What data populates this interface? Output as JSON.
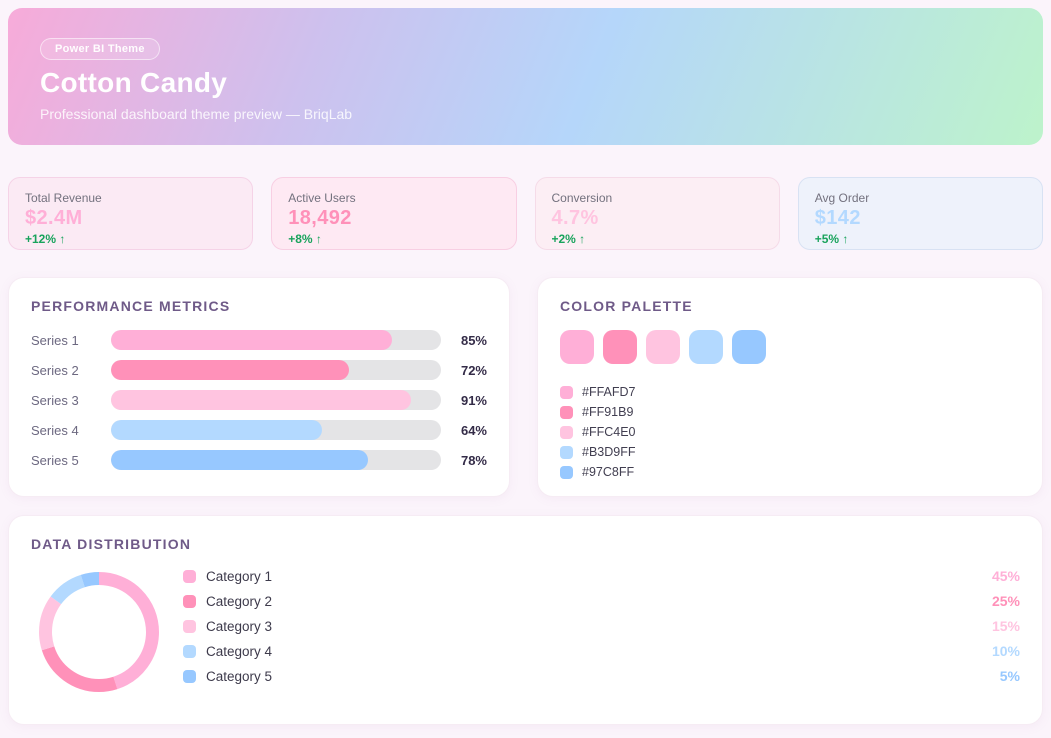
{
  "header": {
    "badge": "Power BI Theme",
    "title": "Cotton Candy",
    "subtitle": "Professional dashboard theme preview — BriqLab",
    "gradient": [
      "#F7ABD9",
      "#CDC1EE",
      "#B5D6FA",
      "#BDF3CB"
    ]
  },
  "colors": {
    "positive_green": "#19A35C",
    "page_background": "#FBF4FB",
    "bar_track": "#E4E4E6"
  },
  "kpis": [
    {
      "label": "Total Revenue",
      "value": "$2.4M",
      "change": "+12% ↑",
      "value_color": "#FFAFD7",
      "bg": "#FBEAF4",
      "border": "#F5D3E7"
    },
    {
      "label": "Active Users",
      "value": "18,492",
      "change": "+8% ↑",
      "value_color": "#FF91B9",
      "bg": "#FEE9F3",
      "border": "#F8CFE3"
    },
    {
      "label": "Conversion",
      "value": "4.7%",
      "change": "+2% ↑",
      "value_color": "#FFC4E0",
      "bg": "#FCEEF4",
      "border": "#F5DBE8"
    },
    {
      "label": "Avg Order",
      "value": "$142",
      "change": "+5% ↑",
      "value_color": "#B3D9FF",
      "bg": "#EEF2FB",
      "border": "#D8E2F3"
    }
  ],
  "palette": {
    "title": "COLOR PALETTE",
    "colors": [
      "#FFAFD7",
      "#FF91B9",
      "#FFC4E0",
      "#B3D9FF",
      "#97C8FF"
    ]
  },
  "chart_data": [
    {
      "type": "bar",
      "orientation": "horizontal",
      "title": "PERFORMANCE METRICS",
      "categories": [
        "Series 1",
        "Series 2",
        "Series 3",
        "Series 4",
        "Series 5"
      ],
      "values": [
        85,
        72,
        91,
        64,
        78
      ],
      "value_labels": [
        "85%",
        "72%",
        "91%",
        "64%",
        "78%"
      ],
      "colors": [
        "#FFAFD7",
        "#FF91B9",
        "#FFC4E0",
        "#B3D9FF",
        "#97C8FF"
      ],
      "xlim": [
        0,
        100
      ],
      "unit": "%",
      "track_color": "#E4E4E6",
      "grid": false,
      "legend_position": "none"
    },
    {
      "type": "pie",
      "donut": true,
      "title": "DATA DISTRIBUTION",
      "categories": [
        "Category 1",
        "Category 2",
        "Category 3",
        "Category 4",
        "Category 5"
      ],
      "values": [
        45,
        25,
        15,
        10,
        5
      ],
      "value_labels": [
        "45%",
        "25%",
        "15%",
        "10%",
        "5%"
      ],
      "colors": [
        "#FFAFD7",
        "#FF91B9",
        "#FFC4E0",
        "#B3D9FF",
        "#97C8FF"
      ],
      "start_angle_deg": -90,
      "direction": "clockwise",
      "legend_position": "right"
    }
  ]
}
